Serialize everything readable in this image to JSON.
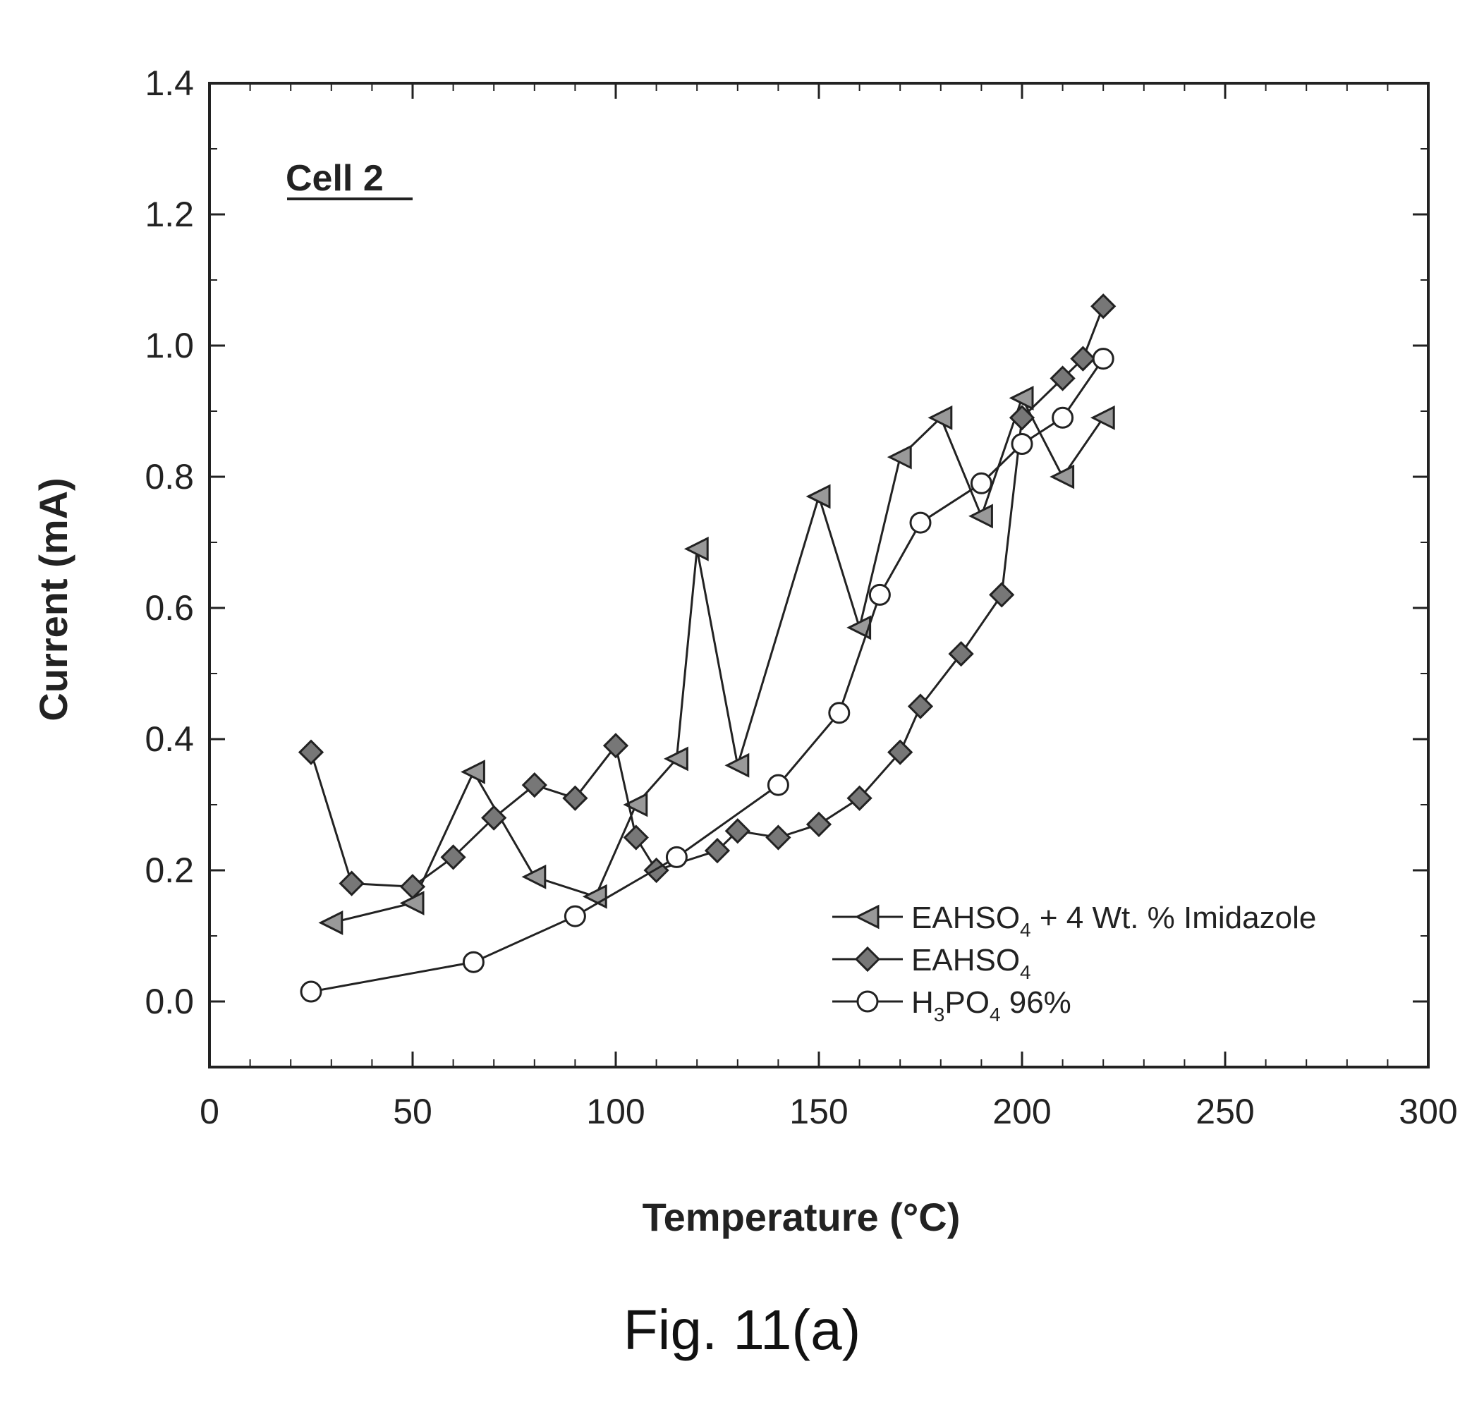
{
  "caption": "Fig. 11(a)",
  "chart_data": {
    "type": "line",
    "annotation": "Cell 2",
    "xlabel": "Temperature (°C)",
    "ylabel": "Current (mA)",
    "xlim": [
      0,
      300
    ],
    "ylim": [
      -0.1,
      1.4
    ],
    "xticks": [
      0,
      50,
      100,
      150,
      200,
      250,
      300
    ],
    "yticks": [
      0.0,
      0.2,
      0.4,
      0.6,
      0.8,
      1.0,
      1.2,
      1.4
    ],
    "xtick_labels": [
      "0",
      "50",
      "100",
      "150",
      "200",
      "250",
      "300"
    ],
    "ytick_labels": [
      "0.0",
      "0.2",
      "0.4",
      "0.6",
      "0.8",
      "1.0",
      "1.2",
      "1.4"
    ],
    "grid": false,
    "legend_position": "bottom-right",
    "series": [
      {
        "name": "EAHSO4 + 4 Wt. % Imidazole",
        "legend_parts": [
          "EAHSO",
          "4",
          " + 4 Wt. % Imidazole"
        ],
        "marker": "left-triangle",
        "x": [
          30,
          50,
          65,
          80,
          95,
          105,
          115,
          120,
          130,
          150,
          160,
          170,
          180,
          190,
          200,
          210,
          220
        ],
        "y": [
          0.12,
          0.15,
          0.35,
          0.19,
          0.16,
          0.3,
          0.37,
          0.69,
          0.36,
          0.77,
          0.57,
          0.83,
          0.89,
          0.74,
          0.92,
          0.8,
          0.89
        ]
      },
      {
        "name": "EAHSO4",
        "legend_parts": [
          "EAHSO",
          "4",
          ""
        ],
        "marker": "diamond",
        "x": [
          25,
          35,
          50,
          60,
          70,
          80,
          90,
          100,
          105,
          110,
          125,
          130,
          140,
          150,
          160,
          170,
          175,
          185,
          195,
          200,
          210,
          215,
          220
        ],
        "y": [
          0.38,
          0.18,
          0.175,
          0.22,
          0.28,
          0.33,
          0.31,
          0.39,
          0.25,
          0.2,
          0.23,
          0.26,
          0.25,
          0.27,
          0.31,
          0.38,
          0.45,
          0.53,
          0.62,
          0.89,
          0.95,
          0.98,
          1.06
        ]
      },
      {
        "name": "H3PO4 96%",
        "legend_parts": [
          "H",
          "3",
          "PO",
          "4",
          " 96%"
        ],
        "marker": "circle",
        "x": [
          25,
          65,
          90,
          115,
          140,
          155,
          165,
          175,
          190,
          200,
          210,
          220
        ],
        "y": [
          0.015,
          0.06,
          0.13,
          0.22,
          0.33,
          0.44,
          0.62,
          0.73,
          0.79,
          0.85,
          0.89,
          0.98
        ]
      }
    ]
  }
}
